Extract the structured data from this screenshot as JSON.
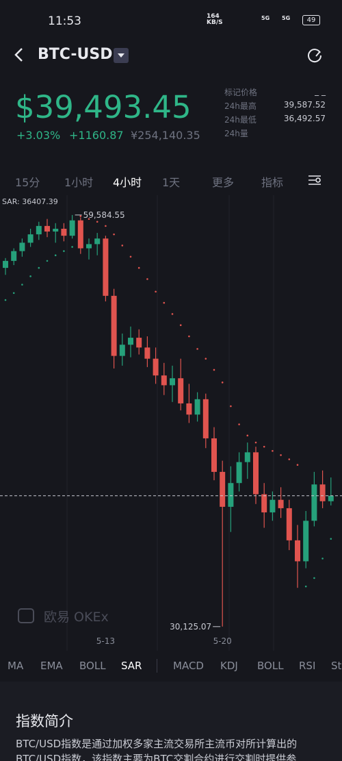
{
  "status_bar": {
    "time": "11:53",
    "speed": "164",
    "speed_unit": "KB/S",
    "network": "5G",
    "battery": "49"
  },
  "header": {
    "title": "BTC-USD"
  },
  "price": {
    "main": "$39,493.45",
    "change_pct": "+3.03%",
    "change_abs": "+1160.87",
    "cny": "¥254,140.35"
  },
  "stats": [
    {
      "label": "标记价格",
      "value": "_ _"
    },
    {
      "label": "24h最高",
      "value": "39,587.52"
    },
    {
      "label": "24h最低",
      "value": "36,492.57"
    },
    {
      "label": "24h量"
    }
  ],
  "tabs": [
    "15分",
    "1小时",
    "4小时",
    "1天",
    "更多",
    "指标"
  ],
  "active_tab": 2,
  "chart_data": {
    "type": "candlestick",
    "categories": [
      null,
      null,
      null,
      null,
      null,
      null,
      null,
      null,
      null,
      null,
      null,
      null,
      "5-13",
      null,
      null,
      null,
      null,
      null,
      null,
      null,
      null,
      null,
      null,
      null,
      null,
      null,
      "5-20",
      null,
      null,
      null,
      null,
      null,
      null,
      null,
      null,
      null,
      null,
      null,
      null,
      null
    ],
    "open": [
      55800,
      56300,
      57000,
      57600,
      58200,
      58800,
      58400,
      58600,
      58100,
      59200,
      57200,
      57500,
      57900,
      53800,
      49500,
      50300,
      50800,
      50100,
      49300,
      48100,
      47400,
      47900,
      46100,
      45300,
      46400,
      43600,
      41200,
      38700,
      40400,
      41900,
      42600,
      39600,
      38300,
      39200,
      38600,
      36300,
      34800,
      37700,
      40300,
      39100
    ],
    "high": [
      56500,
      57200,
      57900,
      58600,
      59100,
      59300,
      59000,
      59000,
      59584.55,
      59400,
      57900,
      58300,
      58100,
      54300,
      51100,
      51600,
      51400,
      50900,
      50100,
      49000,
      48800,
      49300,
      47500,
      46900,
      46800,
      44400,
      42000,
      41600,
      42600,
      43300,
      43000,
      40400,
      39800,
      40100,
      39200,
      37400,
      38400,
      41200,
      41300,
      40800
    ],
    "low": [
      55300,
      56000,
      56600,
      57300,
      57800,
      58000,
      57600,
      57700,
      57900,
      56800,
      56400,
      56700,
      53400,
      48600,
      48800,
      49400,
      49600,
      48700,
      47500,
      46700,
      46200,
      45600,
      44700,
      44800,
      42900,
      40600,
      30125.07,
      36900,
      39800,
      40700,
      38900,
      37200,
      37700,
      37900,
      35600,
      32900,
      34300,
      37300,
      38600,
      38800
    ],
    "close": [
      56300,
      57000,
      57600,
      58200,
      58800,
      58400,
      58600,
      58100,
      59200,
      57200,
      57500,
      57900,
      53800,
      49500,
      50300,
      50800,
      50100,
      49300,
      48100,
      47400,
      47900,
      46100,
      45300,
      46400,
      43600,
      41200,
      38700,
      40400,
      41900,
      42600,
      39600,
      38300,
      39200,
      38600,
      36300,
      34800,
      37700,
      40300,
      39100,
      39493.45
    ],
    "sar": {
      "name": "SAR",
      "color": "#e0544f",
      "color_below": "#26a17b",
      "label": "SAR: 36407.39",
      "values": [
        53500,
        54000,
        54600,
        55200,
        55800,
        56300,
        56700,
        57000,
        57300,
        59500,
        59300,
        59100,
        58800,
        58200,
        57400,
        56600,
        55800,
        55000,
        54100,
        53300,
        52500,
        51700,
        50900,
        50000,
        49300,
        48500,
        47600,
        45900,
        44600,
        43800,
        43300,
        43000,
        42700,
        42400,
        42100,
        41700,
        33000,
        33600,
        35000,
        36407.39
      ]
    },
    "max_label": "59,584.55",
    "min_label": "30,125.07",
    "up_color": "#26a17b",
    "down_color": "#e0544f",
    "ylim": [
      28400,
      61000
    ],
    "watermark": "欧易 OKEx"
  },
  "indicator_tabs": [
    "MA",
    "EMA",
    "BOLL",
    "SAR",
    "MACD",
    "KDJ",
    "BOLL",
    "RSI",
    "St"
  ],
  "active_indicator": 3,
  "intro": {
    "title": "指数简介",
    "lines": [
      "BTC/USD指数是通过加权多家主流交易所主流币对所计算出的",
      "BTC/USD指数，该指数主要为BTC交割合约进行交割时提供参"
    ]
  }
}
